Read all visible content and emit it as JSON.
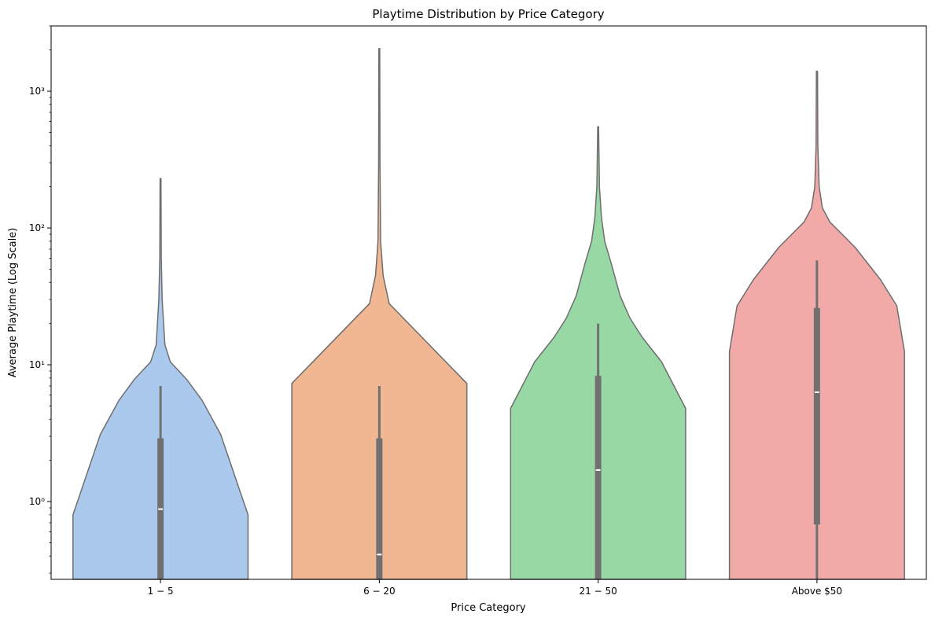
{
  "chart_data": {
    "type": "violin",
    "title": "Playtime Distribution by Price Category",
    "xlabel": "Price Category",
    "ylabel": "Average Playtime (Log Scale)",
    "yscale": "log",
    "ylim": [
      0.27,
      3000
    ],
    "grid": false,
    "categories": [
      "$1 - $5",
      "$6 - $20",
      "$21 - $50",
      "Above $50"
    ],
    "category_tick_labels": [
      "1 − 5",
      "6 − 20",
      "21 − 50",
      "Above $50"
    ],
    "y_ticks": [
      {
        "value": 1,
        "label": "10⁰"
      },
      {
        "value": 10,
        "label": "10¹"
      },
      {
        "value": 100,
        "label": "10²"
      },
      {
        "value": 1000,
        "label": "10³"
      }
    ],
    "colors": [
      "#abc9ec",
      "#f0b792",
      "#98d8a5",
      "#f2aaa9"
    ],
    "edge_color": "#6e6e6e",
    "box_color": "#707070",
    "violins": [
      {
        "category": "$1 - $5",
        "profile": [
          {
            "y": 0.27,
            "w": 0.8
          },
          {
            "y": 0.8,
            "w": 0.8
          },
          {
            "y": 3.1,
            "w": 0.55
          },
          {
            "y": 5.5,
            "w": 0.38
          },
          {
            "y": 7.8,
            "w": 0.24
          },
          {
            "y": 10.5,
            "w": 0.09
          },
          {
            "y": 14,
            "w": 0.04
          },
          {
            "y": 30,
            "w": 0.015
          },
          {
            "y": 60,
            "w": 0.007
          },
          {
            "y": 230,
            "w": 0.004
          }
        ],
        "median": 0.88,
        "q1": 0.27,
        "q3": 2.9,
        "whisker_low": 0.27,
        "whisker_high": 7.0
      },
      {
        "category": "$6 - $20",
        "profile": [
          {
            "y": 0.27,
            "w": 0.8
          },
          {
            "y": 7.3,
            "w": 0.8
          },
          {
            "y": 28,
            "w": 0.09
          },
          {
            "y": 45,
            "w": 0.035
          },
          {
            "y": 80,
            "w": 0.012
          },
          {
            "y": 300,
            "w": 0.006
          },
          {
            "y": 2050,
            "w": 0.004
          }
        ],
        "median": 0.41,
        "q1": 0.27,
        "q3": 2.9,
        "whisker_low": 0.27,
        "whisker_high": 7.0
      },
      {
        "category": "$21 - $50",
        "profile": [
          {
            "y": 0.27,
            "w": 0.8
          },
          {
            "y": 4.8,
            "w": 0.8
          },
          {
            "y": 10.5,
            "w": 0.58
          },
          {
            "y": 16,
            "w": 0.4
          },
          {
            "y": 22,
            "w": 0.29
          },
          {
            "y": 32,
            "w": 0.2
          },
          {
            "y": 55,
            "w": 0.12
          },
          {
            "y": 80,
            "w": 0.06
          },
          {
            "y": 120,
            "w": 0.03
          },
          {
            "y": 200,
            "w": 0.012
          },
          {
            "y": 550,
            "w": 0.004
          }
        ],
        "median": 1.7,
        "q1": 0.27,
        "q3": 8.3,
        "whisker_low": 0.27,
        "whisker_high": 20
      },
      {
        "category": "Above $50",
        "profile": [
          {
            "y": 0.27,
            "w": 0.8
          },
          {
            "y": 12.5,
            "w": 0.8
          },
          {
            "y": 27,
            "w": 0.73
          },
          {
            "y": 42,
            "w": 0.58
          },
          {
            "y": 72,
            "w": 0.35
          },
          {
            "y": 90,
            "w": 0.23
          },
          {
            "y": 110,
            "w": 0.12
          },
          {
            "y": 140,
            "w": 0.05
          },
          {
            "y": 200,
            "w": 0.02
          },
          {
            "y": 400,
            "w": 0.008
          },
          {
            "y": 1400,
            "w": 0.005
          }
        ],
        "median": 6.3,
        "q1": 0.68,
        "q3": 26,
        "whisker_low": 0.27,
        "whisker_high": 58
      }
    ]
  }
}
